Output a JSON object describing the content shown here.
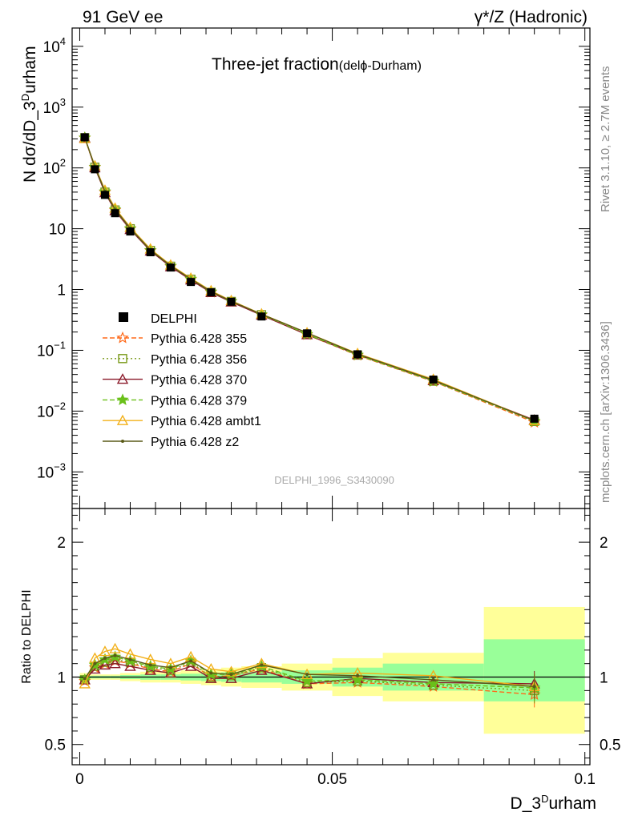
{
  "header": {
    "left": "91 GeV ee",
    "right": "γ*/Z (Hadronic)"
  },
  "side": {
    "rivet": "Rivet 3.1.10, ≥ 2.7M events",
    "mcplots": "mcplots.cern.ch [arXiv:1306.3436]"
  },
  "chart_data": {
    "type": "line",
    "title": "Three-jet fraction",
    "title_sub": "(delϕ-Durham)",
    "analysis_label": "DELPHI_1996_S3430090",
    "xlabel": "D_3^Durham",
    "ylabel": "N dσ/dD_3^Durham",
    "ratio_ylabel": "Ratio to DELPHI",
    "xlim": [
      -0.0015,
      0.101
    ],
    "ylim_log": [
      0.00025,
      20000
    ],
    "ratio_ylim": [
      0.35,
      2.25
    ],
    "x_ticks": [
      {
        "v": 0,
        "label": "0"
      },
      {
        "v": 0.05,
        "label": "0.05"
      },
      {
        "v": 0.1,
        "label": "0.1"
      }
    ],
    "y_ticks": [
      {
        "e": 4,
        "label": "10",
        "sup": "4"
      },
      {
        "e": 3,
        "label": "10",
        "sup": "3"
      },
      {
        "e": 2,
        "label": "10",
        "sup": "2"
      },
      {
        "e": 1,
        "label": "10",
        "sup": ""
      },
      {
        "e": 0,
        "label": "1",
        "sup": ""
      },
      {
        "e": -1,
        "label": "10",
        "sup": "−1"
      },
      {
        "e": -2,
        "label": "10",
        "sup": "−2"
      },
      {
        "e": -3,
        "label": "10",
        "sup": "−3"
      }
    ],
    "ratio_ticks": [
      {
        "v": 0.5,
        "label": "0.5"
      },
      {
        "v": 1,
        "label": "1"
      },
      {
        "v": 2,
        "label": "2"
      }
    ],
    "x": [
      0.001,
      0.003,
      0.005,
      0.007,
      0.01,
      0.014,
      0.018,
      0.022,
      0.026,
      0.03,
      0.036,
      0.045,
      0.055,
      0.07,
      0.09
    ],
    "bin_edges": [
      0,
      0.002,
      0.004,
      0.006,
      0.008,
      0.012,
      0.016,
      0.02,
      0.024,
      0.028,
      0.032,
      0.04,
      0.05,
      0.06,
      0.08,
      0.1
    ],
    "band_yellow": [
      [
        0.97,
        1.03
      ],
      [
        0.98,
        1.02
      ],
      [
        0.98,
        1.02
      ],
      [
        0.98,
        1.02
      ],
      [
        0.97,
        1.03
      ],
      [
        0.96,
        1.04
      ],
      [
        0.96,
        1.04
      ],
      [
        0.95,
        1.05
      ],
      [
        0.94,
        1.06
      ],
      [
        0.93,
        1.07
      ],
      [
        0.92,
        1.08
      ],
      [
        0.9,
        1.1
      ],
      [
        0.86,
        1.14
      ],
      [
        0.82,
        1.18
      ],
      [
        0.58,
        1.52
      ]
    ],
    "band_green": [
      [
        0.985,
        1.015
      ],
      [
        0.99,
        1.01
      ],
      [
        0.99,
        1.01
      ],
      [
        0.99,
        1.01
      ],
      [
        0.985,
        1.015
      ],
      [
        0.98,
        1.02
      ],
      [
        0.98,
        1.02
      ],
      [
        0.975,
        1.025
      ],
      [
        0.97,
        1.03
      ],
      [
        0.965,
        1.035
      ],
      [
        0.96,
        1.04
      ],
      [
        0.95,
        1.05
      ],
      [
        0.93,
        1.07
      ],
      [
        0.9,
        1.1
      ],
      [
        0.82,
        1.28
      ]
    ],
    "data": {
      "name": "DELPHI",
      "color": "#000000",
      "values": [
        320,
        95,
        36,
        18,
        9,
        4.1,
        2.3,
        1.33,
        0.9,
        0.63,
        0.36,
        0.19,
        0.086,
        0.033,
        0.0075
      ]
    },
    "series": [
      {
        "name": "Pythia 6.428 355",
        "color": "#ff6a1a",
        "marker": "star-open",
        "dash": "6,3",
        "ratio": [
          0.97,
          1.07,
          1.1,
          1.12,
          1.1,
          1.06,
          1.04,
          1.1,
          1.0,
          1.01,
          1.06,
          0.95,
          0.96,
          0.93,
          0.87
        ]
      },
      {
        "name": "Pythia 6.428 356",
        "color": "#7a9a1a",
        "marker": "square-open",
        "dash": "2,3",
        "ratio": [
          0.98,
          1.08,
          1.11,
          1.13,
          1.11,
          1.07,
          1.05,
          1.11,
          1.0,
          1.01,
          1.07,
          0.96,
          0.97,
          0.94,
          0.9
        ]
      },
      {
        "name": "Pythia 6.428 370",
        "color": "#8b1a2a",
        "marker": "triangle-open",
        "dash": "",
        "ratio": [
          0.98,
          1.06,
          1.09,
          1.1,
          1.08,
          1.05,
          1.03,
          1.08,
          0.99,
          0.99,
          1.05,
          0.95,
          0.99,
          0.96,
          0.95
        ]
      },
      {
        "name": "Pythia 6.428 379",
        "color": "#6ac01a",
        "marker": "star-filled",
        "dash": "6,3",
        "ratio": [
          0.98,
          1.09,
          1.13,
          1.15,
          1.12,
          1.08,
          1.06,
          1.12,
          1.02,
          1.02,
          1.08,
          0.97,
          0.98,
          0.95,
          0.92
        ]
      },
      {
        "name": "Pythia 6.428 ambt1",
        "color": "#f2b01a",
        "marker": "triangle-open",
        "dash": "",
        "ratio": [
          0.95,
          1.14,
          1.19,
          1.21,
          1.17,
          1.13,
          1.1,
          1.15,
          1.06,
          1.04,
          1.1,
          1.02,
          1.03,
          1.01,
          0.93
        ]
      },
      {
        "name": "Pythia 6.428 z2",
        "color": "#5a5a18",
        "marker": "dot",
        "dash": "",
        "ratio": [
          0.99,
          1.1,
          1.14,
          1.16,
          1.13,
          1.09,
          1.07,
          1.12,
          1.03,
          1.02,
          1.09,
          1.02,
          1.01,
          0.98,
          0.93
        ]
      }
    ]
  }
}
